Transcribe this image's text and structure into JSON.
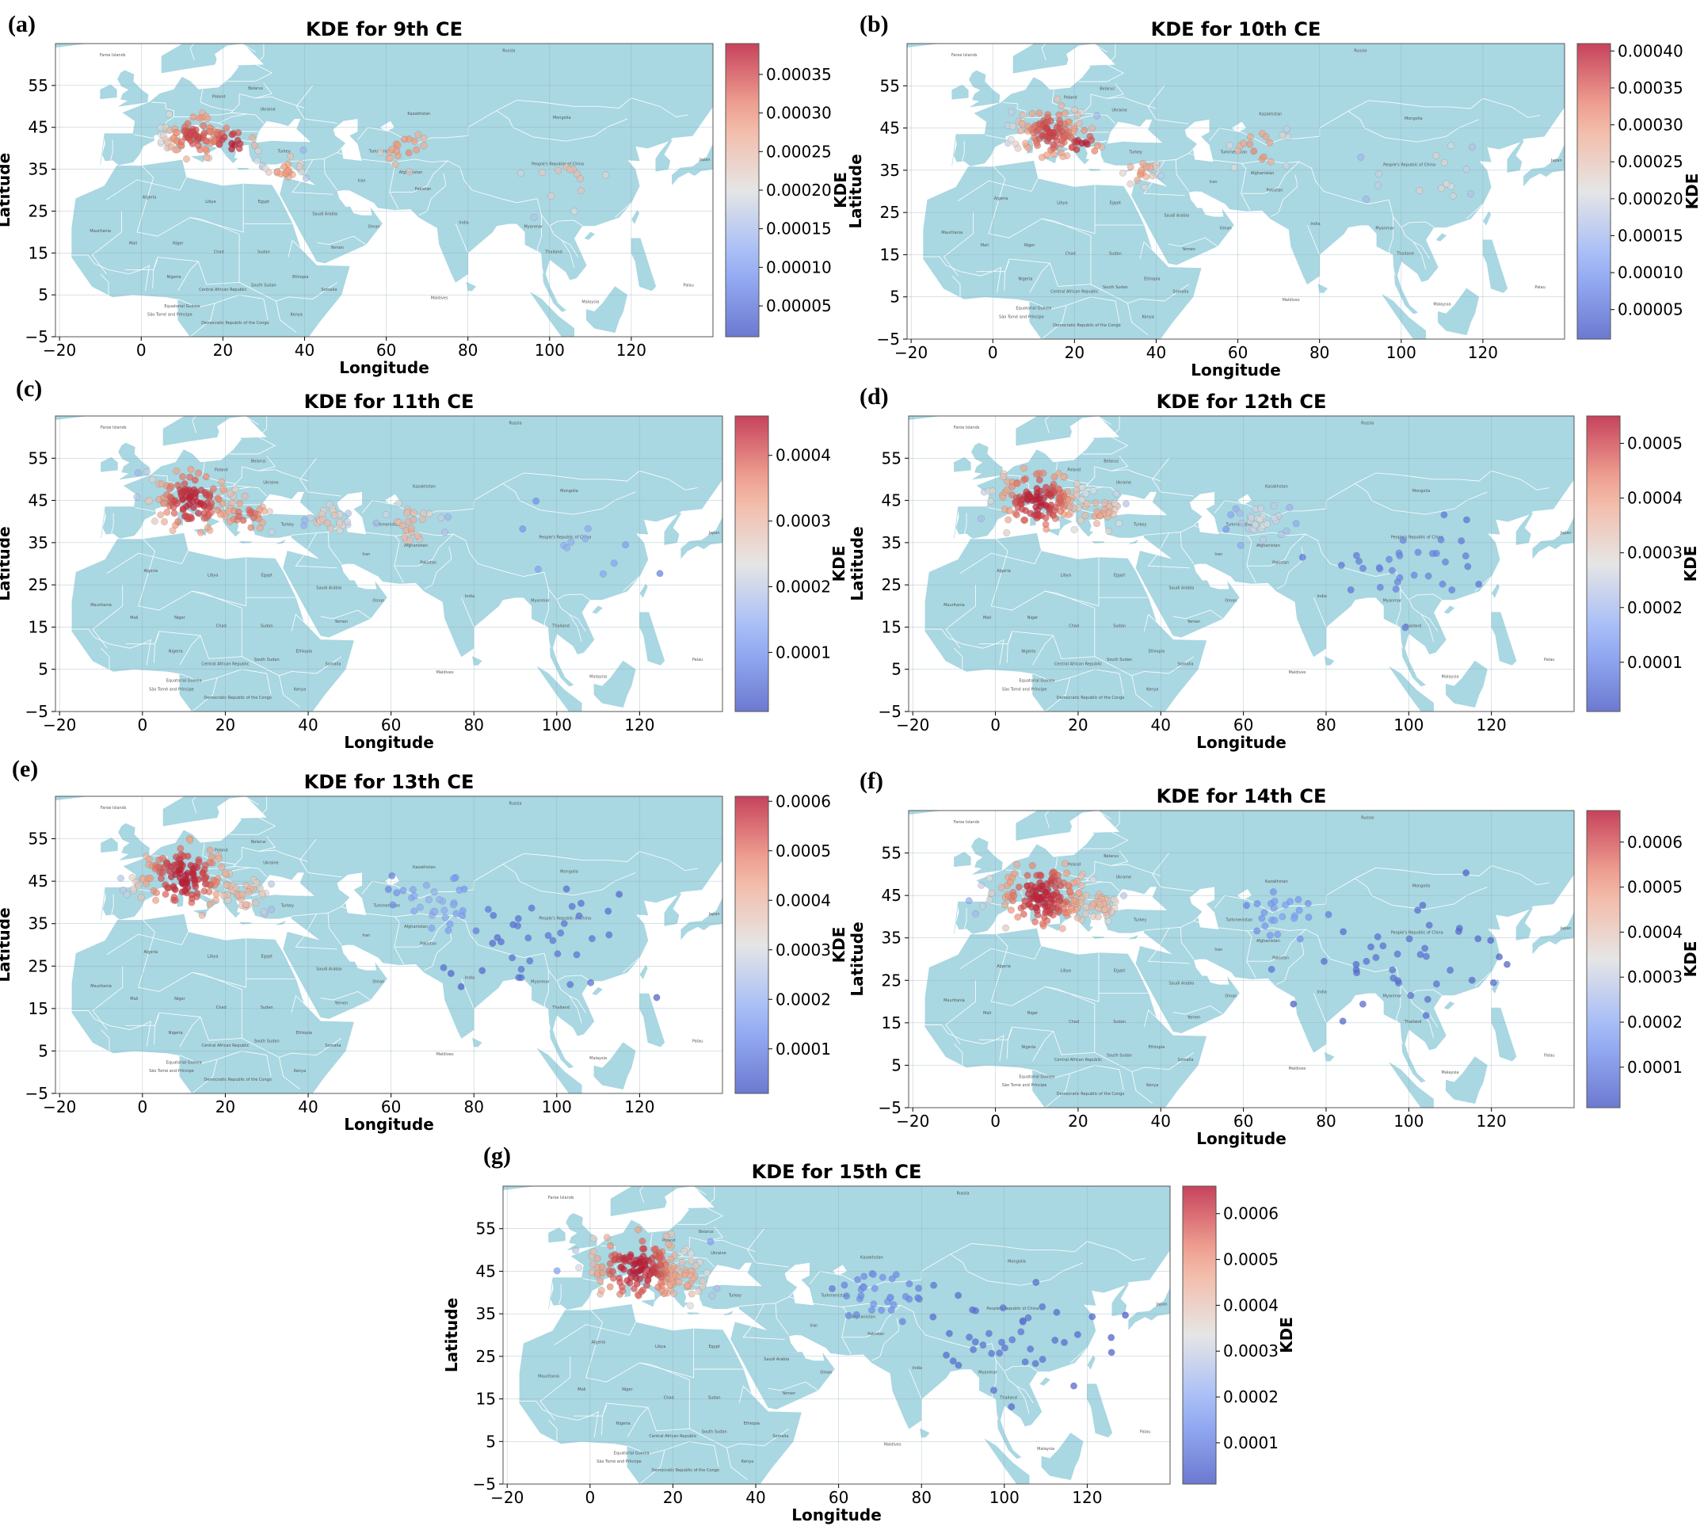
{
  "chart_data": [
    {
      "type": "scatter",
      "panel_label": "(a)",
      "title": "KDE for 9th CE",
      "xlabel": "Longitude",
      "ylabel": "Latitude",
      "colorbar_label": "KDE",
      "xlim": [
        -21,
        140
      ],
      "ylim": [
        -5,
        65
      ],
      "xticks": [
        -20,
        0,
        20,
        40,
        60,
        80,
        100,
        120
      ],
      "yticks": [
        -5,
        5,
        15,
        25,
        35,
        45,
        55
      ],
      "colorbar_range": [
        1e-05,
        0.00039
      ],
      "colorbar_ticks": [
        "0.00005",
        "0.00010",
        "0.00015",
        "0.00020",
        "0.00025",
        "0.00030",
        "0.00035"
      ],
      "colormap": "coolwarm",
      "grid": true,
      "hotspots": [
        {
          "lon": 13,
          "lat": 43,
          "spread": 6,
          "kde": 0.00035
        },
        {
          "lon": 22,
          "lat": 41,
          "spread": 5,
          "kde": 0.00038
        },
        {
          "lon": 35,
          "lat": 35,
          "spread": 4,
          "kde": 0.0003
        },
        {
          "lon": 65,
          "lat": 40,
          "spread": 6,
          "kde": 0.00031
        },
        {
          "lon": 105,
          "lat": 35,
          "spread": 12,
          "kde": 0.00025
        }
      ],
      "scatter_points": 160
    },
    {
      "type": "scatter",
      "panel_label": "(b)",
      "title": "KDE for 10th CE",
      "xlabel": "Longitude",
      "ylabel": "Latitude",
      "colorbar_label": "KDE",
      "xlim": [
        -21,
        140
      ],
      "ylim": [
        -5,
        65
      ],
      "xticks": [
        -20,
        0,
        20,
        40,
        60,
        80,
        100,
        120
      ],
      "yticks": [
        -5,
        5,
        15,
        25,
        35,
        45,
        55
      ],
      "colorbar_range": [
        1e-05,
        0.00041
      ],
      "colorbar_ticks": [
        "0.00005",
        "0.00010",
        "0.00015",
        "0.00020",
        "0.00025",
        "0.00030",
        "0.00035",
        "0.00040"
      ],
      "colormap": "coolwarm",
      "grid": true,
      "hotspots": [
        {
          "lon": 14,
          "lat": 44,
          "spread": 7,
          "kde": 0.00037
        },
        {
          "lon": 22,
          "lat": 41,
          "spread": 4,
          "kde": 0.0004
        },
        {
          "lon": 36,
          "lat": 35,
          "spread": 4,
          "kde": 0.00031
        },
        {
          "lon": 65,
          "lat": 40,
          "spread": 6,
          "kde": 0.00033
        },
        {
          "lon": 105,
          "lat": 35,
          "spread": 12,
          "kde": 0.00024
        }
      ],
      "scatter_points": 170
    },
    {
      "type": "scatter",
      "panel_label": "(c)",
      "title": "KDE for 11th CE",
      "xlabel": "Longitude",
      "ylabel": "Latitude",
      "colorbar_label": "KDE",
      "xlim": [
        -21,
        140
      ],
      "ylim": [
        -5,
        65
      ],
      "xticks": [
        -20,
        0,
        20,
        40,
        60,
        80,
        100,
        120
      ],
      "yticks": [
        -5,
        5,
        15,
        25,
        35,
        45,
        55
      ],
      "colorbar_range": [
        1e-05,
        0.00046
      ],
      "colorbar_ticks": [
        "0.0001",
        "0.0002",
        "0.0003",
        "0.0004"
      ],
      "colormap": "coolwarm",
      "grid": true,
      "hotspots": [
        {
          "lon": 12,
          "lat": 45,
          "spread": 8,
          "kde": 0.00044
        },
        {
          "lon": 25,
          "lat": 41,
          "spread": 5,
          "kde": 0.0004
        },
        {
          "lon": 45,
          "lat": 40,
          "spread": 4,
          "kde": 0.0003
        },
        {
          "lon": 65,
          "lat": 39,
          "spread": 6,
          "kde": 0.00032
        },
        {
          "lon": 105,
          "lat": 32,
          "spread": 14,
          "kde": 0.00015
        }
      ],
      "scatter_points": 210
    },
    {
      "type": "scatter",
      "panel_label": "(d)",
      "title": "KDE for 12th CE",
      "xlabel": "Longitude",
      "ylabel": "Latitude",
      "colorbar_label": "KDE",
      "xlim": [
        -21,
        140
      ],
      "ylim": [
        -5,
        65
      ],
      "xticks": [
        -20,
        0,
        20,
        40,
        60,
        80,
        100,
        120
      ],
      "yticks": [
        -5,
        5,
        15,
        25,
        35,
        45,
        55
      ],
      "colorbar_range": [
        1e-05,
        0.00055
      ],
      "colorbar_ticks": [
        "0.0001",
        "0.0002",
        "0.0003",
        "0.0004",
        "0.0005"
      ],
      "colormap": "coolwarm",
      "grid": true,
      "hotspots": [
        {
          "lon": 10,
          "lat": 45,
          "spread": 8,
          "kde": 0.00053
        },
        {
          "lon": 25,
          "lat": 42,
          "spread": 5,
          "kde": 0.0004
        },
        {
          "lon": 65,
          "lat": 40,
          "spread": 6,
          "kde": 0.00028
        },
        {
          "lon": 100,
          "lat": 30,
          "spread": 16,
          "kde": 0.0001
        }
      ],
      "scatter_points": 230
    },
    {
      "type": "scatter",
      "panel_label": "(e)",
      "title": "KDE for 13th CE",
      "xlabel": "Longitude",
      "ylabel": "Latitude",
      "colorbar_label": "KDE",
      "xlim": [
        -21,
        140
      ],
      "ylim": [
        -5,
        65
      ],
      "xticks": [
        -20,
        0,
        20,
        40,
        60,
        80,
        100,
        120
      ],
      "yticks": [
        -5,
        5,
        15,
        25,
        35,
        45,
        55
      ],
      "colorbar_range": [
        1e-05,
        0.00061
      ],
      "colorbar_ticks": [
        "0.0001",
        "0.0002",
        "0.0003",
        "0.0004",
        "0.0005",
        "0.0006"
      ],
      "colormap": "coolwarm",
      "grid": true,
      "hotspots": [
        {
          "lon": 10,
          "lat": 46,
          "spread": 9,
          "kde": 0.00059
        },
        {
          "lon": 25,
          "lat": 42,
          "spread": 5,
          "kde": 0.00042
        },
        {
          "lon": 70,
          "lat": 40,
          "spread": 8,
          "kde": 0.0002
        },
        {
          "lon": 100,
          "lat": 30,
          "spread": 18,
          "kde": 8e-05
        }
      ],
      "scatter_points": 240
    },
    {
      "type": "scatter",
      "panel_label": "(f)",
      "title": "KDE for 14th CE",
      "xlabel": "Longitude",
      "ylabel": "Latitude",
      "colorbar_label": "KDE",
      "xlim": [
        -21,
        140
      ],
      "ylim": [
        -5,
        65
      ],
      "xticks": [
        -20,
        0,
        20,
        40,
        60,
        80,
        100,
        120
      ],
      "yticks": [
        -5,
        5,
        15,
        25,
        35,
        45,
        55
      ],
      "colorbar_range": [
        1e-05,
        0.00067
      ],
      "colorbar_ticks": [
        "0.0001",
        "0.0002",
        "0.0003",
        "0.0004",
        "0.0005",
        "0.0006"
      ],
      "colormap": "coolwarm",
      "grid": true,
      "hotspots": [
        {
          "lon": 11,
          "lat": 45,
          "spread": 9,
          "kde": 0.00064
        },
        {
          "lon": 25,
          "lat": 43,
          "spread": 5,
          "kde": 0.00045
        },
        {
          "lon": 70,
          "lat": 40,
          "spread": 8,
          "kde": 0.00018
        },
        {
          "lon": 100,
          "lat": 30,
          "spread": 18,
          "kde": 8e-05
        }
      ],
      "scatter_points": 250
    },
    {
      "type": "scatter",
      "panel_label": "(g)",
      "title": "KDE for 15th CE",
      "xlabel": "Longitude",
      "ylabel": "Latitude",
      "colorbar_label": "KDE",
      "xlim": [
        -21,
        140
      ],
      "ylim": [
        -5,
        65
      ],
      "xticks": [
        -20,
        0,
        20,
        40,
        60,
        80,
        100,
        120
      ],
      "yticks": [
        -5,
        5,
        15,
        25,
        35,
        45,
        55
      ],
      "colorbar_range": [
        1e-05,
        0.00066
      ],
      "colorbar_ticks": [
        "0.0001",
        "0.0002",
        "0.0003",
        "0.0004",
        "0.0005",
        "0.0006"
      ],
      "colormap": "coolwarm",
      "grid": true,
      "hotspots": [
        {
          "lon": 11,
          "lat": 46,
          "spread": 9,
          "kde": 0.00064
        },
        {
          "lon": 22,
          "lat": 43,
          "spread": 6,
          "kde": 0.00048
        },
        {
          "lon": 70,
          "lat": 40,
          "spread": 9,
          "kde": 0.00015
        },
        {
          "lon": 100,
          "lat": 30,
          "spread": 18,
          "kde": 8e-05
        }
      ],
      "scatter_points": 260
    }
  ],
  "map_labels": [
    {
      "name": "Russia",
      "lon": 90,
      "lat": 63
    },
    {
      "name": "Kazakhstan",
      "lon": 68,
      "lat": 48
    },
    {
      "name": "People's Republic of China",
      "lon": 102,
      "lat": 36
    },
    {
      "name": "Mongolia",
      "lon": 103,
      "lat": 47
    },
    {
      "name": "India",
      "lon": 79,
      "lat": 22
    },
    {
      "name": "Algeria",
      "lon": 2,
      "lat": 28
    },
    {
      "name": "Libya",
      "lon": 17,
      "lat": 27
    },
    {
      "name": "Egypt",
      "lon": 30,
      "lat": 27
    },
    {
      "name": "Saudi Arabia",
      "lon": 45,
      "lat": 24
    },
    {
      "name": "Iran",
      "lon": 54,
      "lat": 32
    },
    {
      "name": "Turkmenistan",
      "lon": 59,
      "lat": 39
    },
    {
      "name": "Afghanistan",
      "lon": 66,
      "lat": 34
    },
    {
      "name": "Pakistan",
      "lon": 69,
      "lat": 30
    },
    {
      "name": "Mauritania",
      "lon": -10,
      "lat": 20
    },
    {
      "name": "Mali",
      "lon": -2,
      "lat": 17
    },
    {
      "name": "Niger",
      "lon": 9,
      "lat": 17
    },
    {
      "name": "Chad",
      "lon": 19,
      "lat": 15
    },
    {
      "name": "Sudan",
      "lon": 30,
      "lat": 15
    },
    {
      "name": "Ethiopia",
      "lon": 39,
      "lat": 9
    },
    {
      "name": "Nigeria",
      "lon": 8,
      "lat": 9
    },
    {
      "name": "Central African Republic",
      "lon": 20,
      "lat": 6
    },
    {
      "name": "South Sudan",
      "lon": 30,
      "lat": 7
    },
    {
      "name": "Somalia",
      "lon": 46,
      "lat": 6
    },
    {
      "name": "Kenya",
      "lon": 38,
      "lat": 0
    },
    {
      "name": "Yemen",
      "lon": 48,
      "lat": 16
    },
    {
      "name": "Oman",
      "lon": 57,
      "lat": 21
    },
    {
      "name": "Turkey",
      "lon": 35,
      "lat": 39
    },
    {
      "name": "Ukraine",
      "lon": 31,
      "lat": 49
    },
    {
      "name": "Belarus",
      "lon": 28,
      "lat": 54
    },
    {
      "name": "Poland",
      "lon": 19,
      "lat": 52
    },
    {
      "name": "Faroe Islands",
      "lon": -7,
      "lat": 62
    },
    {
      "name": "Myanmar",
      "lon": 96,
      "lat": 21
    },
    {
      "name": "Thailand",
      "lon": 101,
      "lat": 15
    },
    {
      "name": "Malaysia",
      "lon": 110,
      "lat": 3
    },
    {
      "name": "Maldives",
      "lon": 73,
      "lat": 4
    },
    {
      "name": "Palau",
      "lon": 134,
      "lat": 7
    },
    {
      "name": "Japan",
      "lon": 138,
      "lat": 37
    },
    {
      "name": "Equatorial Guinea",
      "lon": 10,
      "lat": 2
    },
    {
      "name": "São Tomé and Príncipe",
      "lon": 7,
      "lat": 0
    },
    {
      "name": "Democratic Republic of the Congo",
      "lon": 23,
      "lat": -2
    }
  ]
}
